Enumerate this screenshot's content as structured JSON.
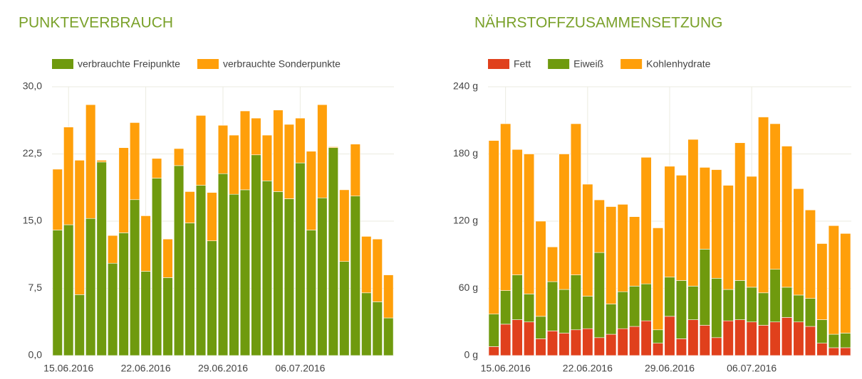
{
  "chart_data": [
    {
      "type": "bar",
      "stacked": true,
      "title": "PUNKTEVERBRAUCH",
      "legend": "top-left",
      "grid": true,
      "categories": [
        null,
        "15.06.2016",
        null,
        null,
        null,
        null,
        null,
        null,
        "22.06.2016",
        null,
        null,
        null,
        null,
        null,
        null,
        "29.06.2016",
        null,
        null,
        null,
        null,
        null,
        null,
        "06.07.2016",
        null,
        null,
        null,
        null,
        null,
        null,
        null,
        null
      ],
      "series": [
        {
          "name": "verbrauchte Freipunkte",
          "color": "#6f9a0e",
          "values": [
            14,
            14.6,
            6.8,
            15.3,
            21.6,
            10.3,
            13.7,
            17.4,
            9.4,
            19.8,
            8.7,
            21.2,
            14.8,
            19,
            12.8,
            20.3,
            18,
            18.5,
            22.4,
            19.5,
            18.3,
            17.5,
            21.5,
            14,
            17.6,
            23.2,
            10.5,
            17.8,
            7,
            6,
            4.2
          ]
        },
        {
          "name": "verbrauchte Sonderpunkte",
          "color": "#ff9f0a",
          "values": [
            6.8,
            10.9,
            15,
            12.7,
            0.2,
            3.1,
            9.5,
            8.6,
            6.2,
            2.2,
            4.3,
            1.9,
            3.5,
            7.8,
            5.4,
            5.4,
            6.6,
            8.8,
            4.1,
            5.1,
            9.1,
            8.3,
            5,
            8.8,
            10.4,
            0.1,
            8,
            5.8,
            6.3,
            7,
            4.8
          ]
        }
      ],
      "ylim": [
        0,
        30
      ],
      "yticks": [
        {
          "value": 0,
          "label": "0,0"
        },
        {
          "value": 7.5,
          "label": "7,5"
        },
        {
          "value": 15,
          "label": "15,0"
        },
        {
          "value": 22.5,
          "label": "22,5"
        },
        {
          "value": 30,
          "label": "30,0"
        }
      ]
    },
    {
      "type": "bar",
      "stacked": true,
      "title": "NÄHRSTOFFZUSAMMENSETZUNG",
      "legend": "top-left",
      "grid": true,
      "categories": [
        null,
        "15.06.2016",
        null,
        null,
        null,
        null,
        null,
        null,
        "22.06.2016",
        null,
        null,
        null,
        null,
        null,
        null,
        "29.06.2016",
        null,
        null,
        null,
        null,
        null,
        null,
        "06.07.2016",
        null,
        null,
        null,
        null,
        null,
        null,
        null,
        null
      ],
      "series": [
        {
          "name": "Fett",
          "color": "#e0401c",
          "values": [
            8,
            28,
            32,
            30,
            15,
            22,
            20,
            23,
            24,
            16,
            19,
            24,
            26,
            31,
            11,
            35,
            15,
            32,
            27,
            16,
            31,
            32,
            30,
            27,
            30,
            34,
            30,
            26,
            11,
            7,
            7
          ]
        },
        {
          "name": "Eiweiß",
          "color": "#6f9a0e",
          "values": [
            29,
            30,
            40,
            25,
            20,
            44,
            39,
            49,
            29,
            76,
            27,
            33,
            36,
            33,
            12,
            35,
            52,
            30,
            68,
            53,
            28,
            35,
            31,
            29,
            47,
            27,
            24,
            25,
            21,
            12,
            13
          ]
        },
        {
          "name": "Kohlenhydrate",
          "color": "#ff9f0a",
          "values": [
            155,
            149,
            112,
            125,
            85,
            31,
            121,
            135,
            100,
            47,
            87,
            78,
            62,
            113,
            91,
            99,
            94,
            131,
            73,
            97,
            93,
            123,
            99,
            157,
            130,
            126,
            95,
            79,
            68,
            97,
            89
          ]
        }
      ],
      "ylim": [
        0,
        240
      ],
      "yticks": [
        {
          "value": 0,
          "label": "0 g"
        },
        {
          "value": 60,
          "label": "60 g"
        },
        {
          "value": 120,
          "label": "120 g"
        },
        {
          "value": 180,
          "label": "180 g"
        },
        {
          "value": 240,
          "label": "240 g"
        }
      ]
    }
  ]
}
